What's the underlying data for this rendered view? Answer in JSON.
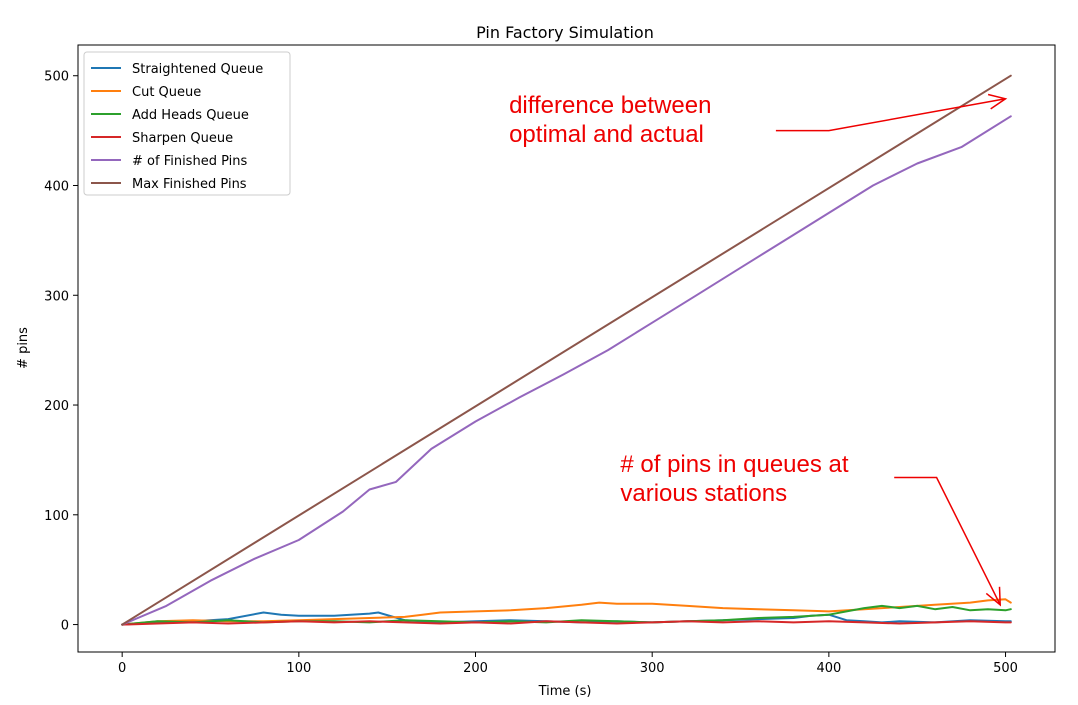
{
  "chart_data": {
    "type": "line",
    "title": "Pin Factory Simulation",
    "xlabel": "Time (s)",
    "ylabel": "# pins",
    "xlim": [
      -25,
      528
    ],
    "ylim": [
      -25,
      528
    ],
    "x_ticks": [
      0,
      100,
      200,
      300,
      400,
      500
    ],
    "y_ticks": [
      0,
      100,
      200,
      300,
      400,
      500
    ],
    "legend_position": "top-left",
    "series": [
      {
        "name": "Straightened Queue",
        "color": "#1f77b4",
        "x": [
          0,
          20,
          40,
          60,
          80,
          90,
          100,
          120,
          140,
          145,
          160,
          180,
          200,
          220,
          240,
          260,
          280,
          300,
          320,
          340,
          360,
          380,
          390,
          400,
          410,
          420,
          430,
          440,
          460,
          480,
          500,
          503
        ],
        "y": [
          0,
          2,
          3,
          5,
          11,
          9,
          8,
          8,
          10,
          11,
          4,
          2,
          3,
          4,
          3,
          2,
          3,
          2,
          3,
          4,
          5,
          6,
          8,
          9,
          4,
          3,
          2,
          3,
          2,
          4,
          3,
          3
        ]
      },
      {
        "name": "Cut Queue",
        "color": "#ff7f0e",
        "x": [
          0,
          20,
          40,
          60,
          80,
          100,
          120,
          140,
          160,
          170,
          180,
          200,
          220,
          240,
          260,
          270,
          280,
          300,
          320,
          340,
          360,
          380,
          400,
          420,
          440,
          460,
          480,
          490,
          500,
          503
        ],
        "y": [
          0,
          3,
          4,
          3,
          3,
          4,
          5,
          6,
          7,
          9,
          11,
          12,
          13,
          15,
          18,
          20,
          19,
          19,
          17,
          15,
          14,
          13,
          12,
          14,
          16,
          18,
          20,
          22,
          23,
          20
        ]
      },
      {
        "name": "Add Heads Queue",
        "color": "#2ca02c",
        "x": [
          0,
          20,
          40,
          60,
          80,
          100,
          120,
          140,
          160,
          180,
          200,
          220,
          240,
          260,
          280,
          300,
          320,
          340,
          360,
          380,
          400,
          410,
          420,
          430,
          440,
          450,
          460,
          470,
          480,
          490,
          500,
          503
        ],
        "y": [
          0,
          3,
          2,
          4,
          2,
          3,
          3,
          2,
          4,
          3,
          2,
          3,
          2,
          4,
          3,
          2,
          3,
          4,
          6,
          7,
          9,
          12,
          15,
          17,
          15,
          17,
          14,
          16,
          13,
          14,
          13,
          14
        ]
      },
      {
        "name": "Sharpen Queue",
        "color": "#d62728",
        "x": [
          0,
          20,
          40,
          60,
          80,
          100,
          120,
          140,
          160,
          180,
          200,
          220,
          240,
          260,
          280,
          300,
          320,
          340,
          360,
          380,
          400,
          420,
          440,
          460,
          480,
          500,
          503
        ],
        "y": [
          0,
          1,
          2,
          1,
          2,
          3,
          2,
          3,
          2,
          1,
          2,
          1,
          3,
          2,
          1,
          2,
          3,
          2,
          3,
          2,
          3,
          2,
          1,
          2,
          3,
          2,
          2
        ]
      },
      {
        "name": "# of Finished Pins",
        "color": "#9467bd",
        "x": [
          0,
          25,
          50,
          75,
          100,
          125,
          140,
          155,
          175,
          200,
          225,
          250,
          275,
          300,
          325,
          350,
          375,
          400,
          425,
          450,
          475,
          503
        ],
        "y": [
          0,
          17,
          40,
          60,
          77,
          103,
          123,
          130,
          160,
          185,
          207,
          228,
          250,
          275,
          300,
          325,
          350,
          375,
          400,
          420,
          435,
          463
        ]
      },
      {
        "name": "Max Finished Pins",
        "color": "#8c564b",
        "x": [
          0,
          503
        ],
        "y": [
          0,
          500
        ]
      }
    ],
    "annotations": [
      {
        "text_lines": [
          "difference between",
          "optimal and actual"
        ],
        "color": "#ee0000",
        "text_at": [
          219,
          466
        ],
        "arrow_path": [
          [
            370,
            450
          ],
          [
            400,
            450
          ],
          [
            500,
            479
          ]
        ]
      },
      {
        "text_lines": [
          "# of pins in queues at",
          "various stations"
        ],
        "color": "#ee0000",
        "text_at": [
          282,
          139
        ],
        "arrow_path": [
          [
            437,
            134
          ],
          [
            461,
            134
          ],
          [
            497,
            18
          ]
        ]
      }
    ]
  }
}
